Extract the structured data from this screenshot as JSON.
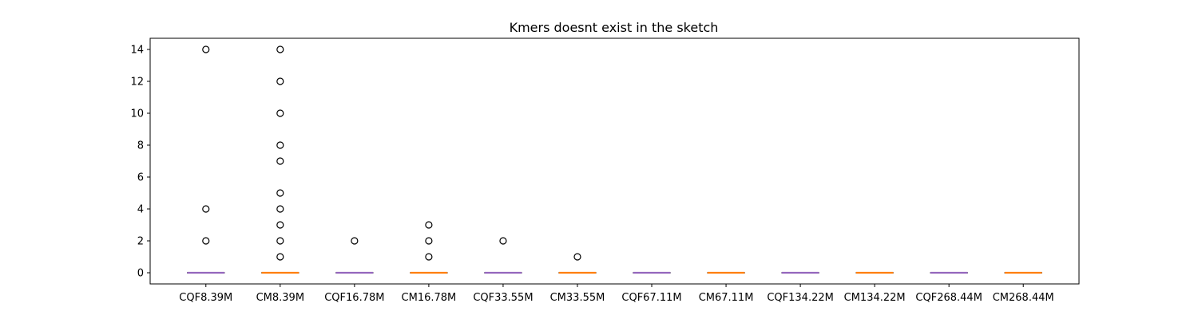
{
  "chart_data": {
    "type": "box",
    "title": "Kmers doesnt exist in the sketch",
    "xlabel": "",
    "ylabel": "",
    "ylim": [
      -0.7,
      14.7
    ],
    "yticks": [
      0,
      2,
      4,
      6,
      8,
      10,
      12,
      14
    ],
    "grid": false,
    "categories": [
      "CQF8.39M",
      "CM8.39M",
      "CQF16.78M",
      "CM16.78M",
      "CQF33.55M",
      "CM33.55M",
      "CQF67.11M",
      "CM67.11M",
      "CQF134.22M",
      "CM134.22M",
      "CQF268.44M",
      "CM268.44M"
    ],
    "boxes": [
      {
        "label": "CQF8.39M",
        "q1": 0,
        "median": 0,
        "q3": 0,
        "whisker_low": 0,
        "whisker_high": 0,
        "fliers": [
          2,
          4,
          14
        ],
        "median_color": "#9467bd"
      },
      {
        "label": "CM8.39M",
        "q1": 0,
        "median": 0,
        "q3": 0,
        "whisker_low": 0,
        "whisker_high": 0,
        "fliers": [
          1,
          2,
          3,
          4,
          5,
          7,
          8,
          10,
          12,
          14
        ],
        "median_color": "#ff7f0e"
      },
      {
        "label": "CQF16.78M",
        "q1": 0,
        "median": 0,
        "q3": 0,
        "whisker_low": 0,
        "whisker_high": 0,
        "fliers": [
          2
        ],
        "median_color": "#9467bd"
      },
      {
        "label": "CM16.78M",
        "q1": 0,
        "median": 0,
        "q3": 0,
        "whisker_low": 0,
        "whisker_high": 0,
        "fliers": [
          1,
          2,
          3
        ],
        "median_color": "#ff7f0e"
      },
      {
        "label": "CQF33.55M",
        "q1": 0,
        "median": 0,
        "q3": 0,
        "whisker_low": 0,
        "whisker_high": 0,
        "fliers": [
          2
        ],
        "median_color": "#9467bd"
      },
      {
        "label": "CM33.55M",
        "q1": 0,
        "median": 0,
        "q3": 0,
        "whisker_low": 0,
        "whisker_high": 0,
        "fliers": [
          1
        ],
        "median_color": "#ff7f0e"
      },
      {
        "label": "CQF67.11M",
        "q1": 0,
        "median": 0,
        "q3": 0,
        "whisker_low": 0,
        "whisker_high": 0,
        "fliers": [],
        "median_color": "#9467bd"
      },
      {
        "label": "CM67.11M",
        "q1": 0,
        "median": 0,
        "q3": 0,
        "whisker_low": 0,
        "whisker_high": 0,
        "fliers": [],
        "median_color": "#ff7f0e"
      },
      {
        "label": "CQF134.22M",
        "q1": 0,
        "median": 0,
        "q3": 0,
        "whisker_low": 0,
        "whisker_high": 0,
        "fliers": [],
        "median_color": "#9467bd"
      },
      {
        "label": "CM134.22M",
        "q1": 0,
        "median": 0,
        "q3": 0,
        "whisker_low": 0,
        "whisker_high": 0,
        "fliers": [],
        "median_color": "#ff7f0e"
      },
      {
        "label": "CQF268.44M",
        "q1": 0,
        "median": 0,
        "q3": 0,
        "whisker_low": 0,
        "whisker_high": 0,
        "fliers": [],
        "median_color": "#9467bd"
      },
      {
        "label": "CM268.44M",
        "q1": 0,
        "median": 0,
        "q3": 0,
        "whisker_low": 0,
        "whisker_high": 0,
        "fliers": [],
        "median_color": "#ff7f0e"
      }
    ]
  }
}
